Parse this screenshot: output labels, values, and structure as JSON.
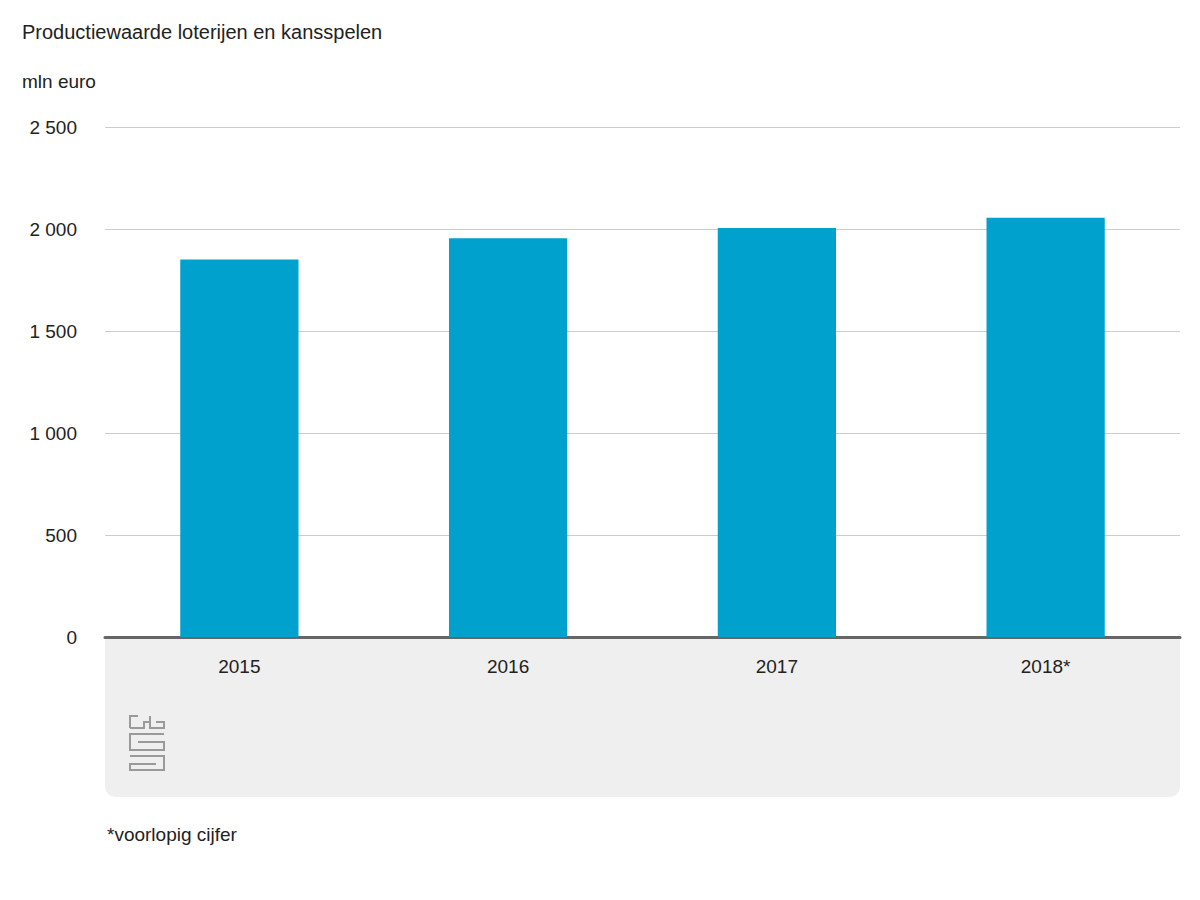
{
  "chart_data": {
    "type": "bar",
    "title": "Productiewaarde loterijen en kansspelen",
    "y_label": "mln euro",
    "categories": [
      "2015",
      "2016",
      "2017",
      "2018*"
    ],
    "values": [
      1850,
      1955,
      2005,
      2055
    ],
    "color": "#00a1cd",
    "ylim": [
      0,
      2500
    ],
    "yticks": [
      0,
      500,
      {
        "value": 1000,
        "label": "1 000"
      },
      {
        "value": 1500,
        "label": "1 500"
      },
      {
        "value": 2000,
        "label": "2 000"
      },
      {
        "value": 2500,
        "label": "2 500"
      }
    ],
    "grid": true,
    "footnote": "*voorlopig cijfer"
  }
}
